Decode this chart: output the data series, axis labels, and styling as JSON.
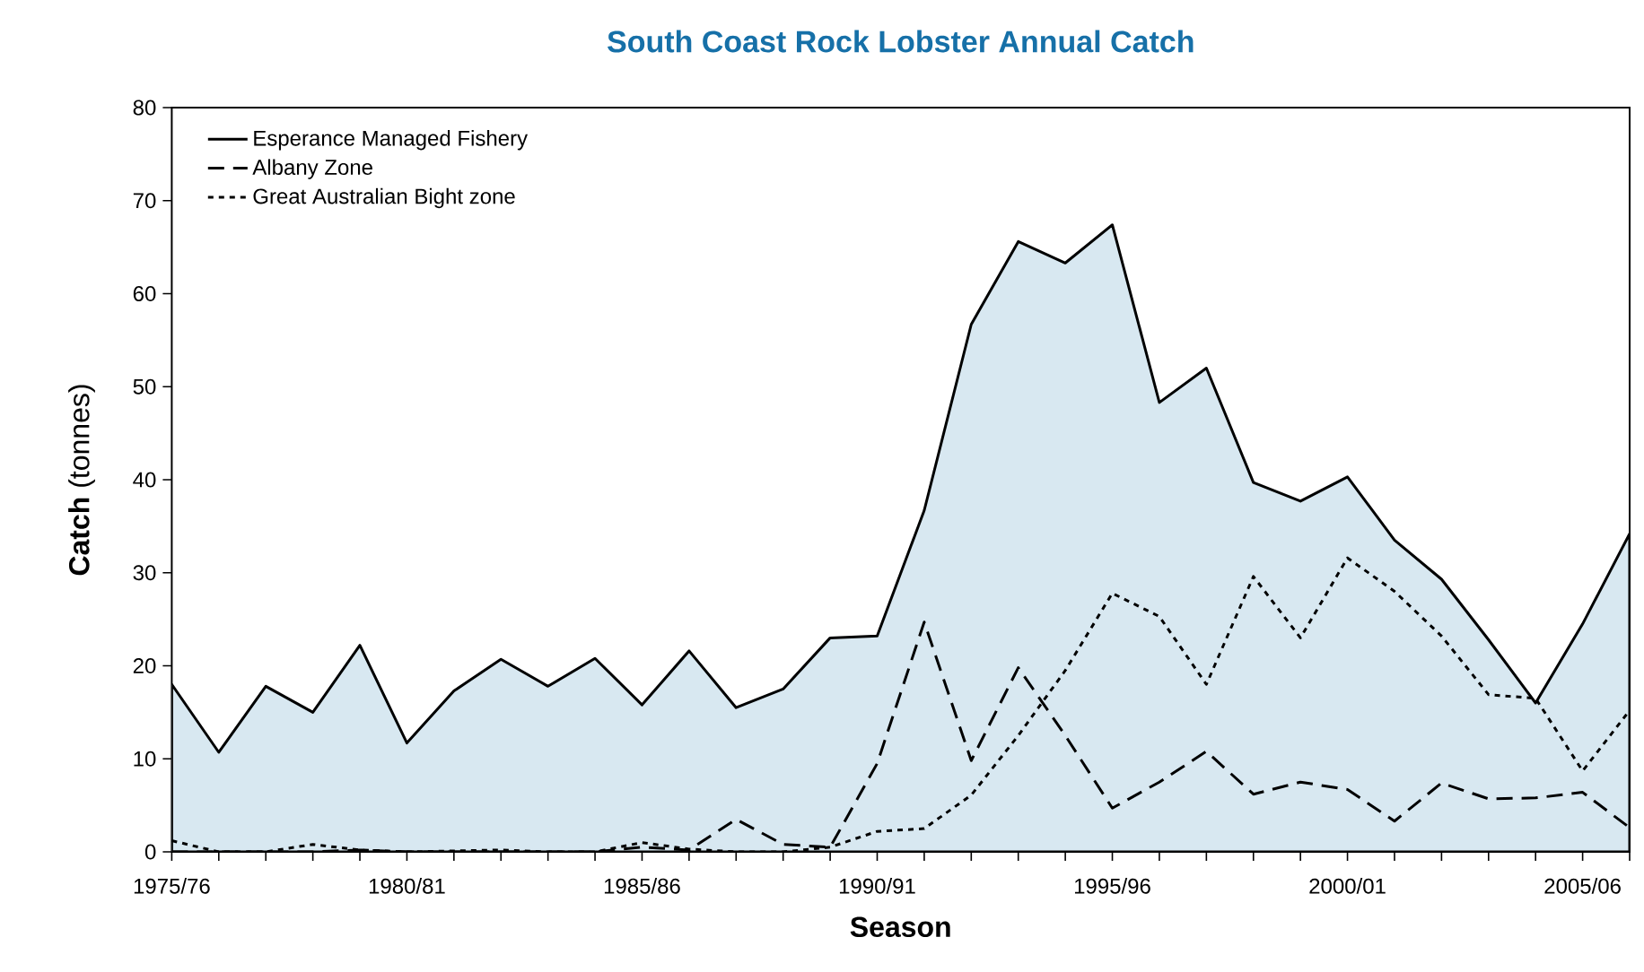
{
  "chart_data": {
    "type": "line",
    "title": "South Coast Rock Lobster Annual Catch",
    "xlabel": "Season",
    "ylabel": "**Catch** (tonnes)",
    "categories": [
      "1975/76",
      null,
      null,
      null,
      null,
      "1980/81",
      null,
      null,
      null,
      null,
      "1985/86",
      null,
      null,
      null,
      null,
      "1990/91",
      null,
      null,
      null,
      null,
      "1995/96",
      null,
      null,
      null,
      null,
      "2000/01",
      null,
      null,
      null,
      null,
      "2005/06",
      null
    ],
    "ylim": [
      0,
      80
    ],
    "yticks": [
      0,
      10,
      20,
      30,
      40,
      50,
      60,
      70,
      80
    ],
    "legend": "top left",
    "marker": "none",
    "grid": false,
    "series": [
      {
        "name": "Esperance Managed Fishery",
        "type": "area",
        "color": "#d8e8f1",
        "line_style": "solid",
        "values": [
          18,
          10.7,
          17.8,
          15,
          22.2,
          11.7,
          17.3,
          20.7,
          17.8,
          20.8,
          15.8,
          21.6,
          15.5,
          17.5,
          23,
          23.2,
          36.7,
          56.7,
          65.6,
          63.3,
          67.4,
          48.3,
          52,
          39.7,
          37.7,
          40.3,
          33.5,
          29.3,
          22.8,
          16,
          24.5,
          34.2
        ]
      },
      {
        "name": "Albany Zone",
        "color": "#000000",
        "line_style": "dashed",
        "values": [
          0,
          0,
          0,
          0,
          0.2,
          0,
          0,
          0,
          0,
          0,
          0.5,
          0.2,
          3.5,
          0.8,
          0.5,
          9.5,
          24.7,
          9.8,
          19.8,
          12.5,
          4.7,
          7.5,
          10.8,
          6.2,
          7.5,
          6.7,
          3.3,
          7.4,
          5.7,
          5.8,
          6.4,
          2.6
        ]
      },
      {
        "name": "Great Australian Bight zone",
        "color": "#000000",
        "line_style": "dotted",
        "values": [
          1.2,
          0,
          0,
          0.8,
          0.2,
          0,
          0.1,
          0.2,
          0,
          0,
          1,
          0.3,
          0,
          0,
          0.5,
          2.2,
          2.5,
          6.1,
          12.5,
          19.5,
          27.8,
          25.3,
          18,
          29.6,
          23,
          31.6,
          28,
          23.2,
          16.9,
          16.5,
          8.7,
          15.2
        ]
      }
    ]
  }
}
